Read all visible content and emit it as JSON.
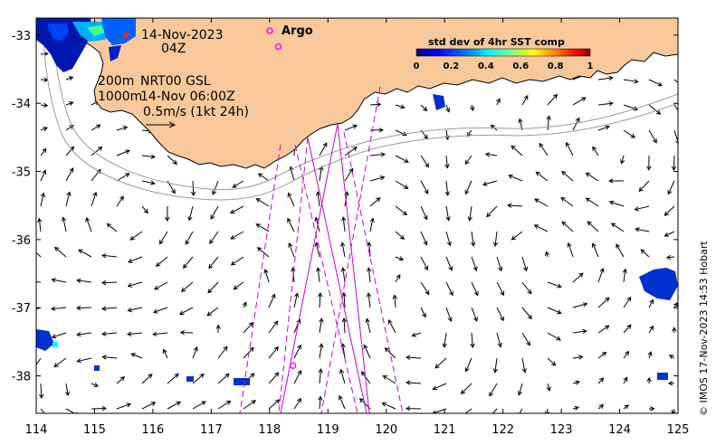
{
  "map": {
    "date_label": "14-Nov-2023",
    "time_label": "04Z",
    "depth_line_1": "200m",
    "depth_line_2": "1000m",
    "product_line_1": "NRT00 GSL",
    "product_line_2": "14-Nov 06:00Z",
    "scale_label": "0.5m/s (1kt 24h)",
    "argo_label": "Argo",
    "credit": "© IMOS 17-Nov-2023 14:53 Hobart",
    "land_color": "#f9c99b",
    "track_color": "#cc00cc",
    "argo_color": "#ff00ff"
  },
  "axes": {
    "x_ticks": [
      "114",
      "115",
      "116",
      "117",
      "118",
      "119",
      "120",
      "121",
      "122",
      "123",
      "124",
      "125"
    ],
    "y_ticks": [
      "-33",
      "-34",
      "-35",
      "-36",
      "-37",
      "-38"
    ]
  },
  "colorbar": {
    "title": "std dev of 4hr SST comp",
    "ticks": [
      "0",
      "0.2",
      "0.4",
      "0.6",
      "0.8",
      "1"
    ],
    "colors": [
      "#00008f",
      "#0000ff",
      "#0080ff",
      "#00ffff",
      "#80ff80",
      "#ffff00",
      "#ff8000",
      "#ff0000",
      "#800000"
    ]
  },
  "argo_floats": [
    {
      "lon": 118.4,
      "lat": -37.85
    },
    {
      "lon": 118.15,
      "lat": -33.17
    }
  ]
}
